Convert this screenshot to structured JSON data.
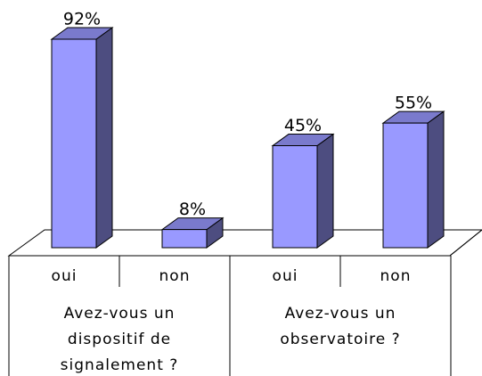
{
  "chart_data": {
    "type": "bar",
    "categories": [
      "oui",
      "non",
      "oui",
      "non"
    ],
    "groups": [
      "Avez-vous un dispositif de signalement ?",
      "Avez-vous un observatoire ?"
    ],
    "values": [
      92,
      8,
      45,
      55
    ],
    "value_labels": [
      "92%",
      "8%",
      "45%",
      "55%"
    ],
    "color": "#9999ff"
  }
}
